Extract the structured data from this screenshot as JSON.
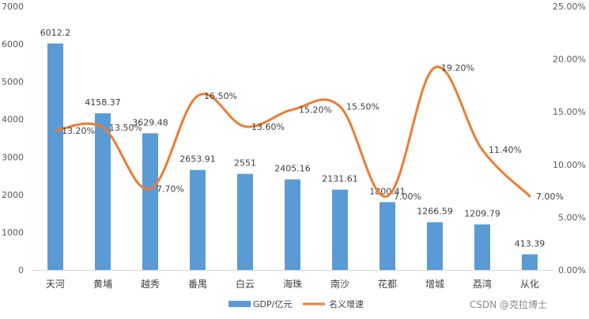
{
  "chart_data": {
    "type": "bar",
    "categories": [
      "天河",
      "黄埔",
      "越秀",
      "番禺",
      "白云",
      "海珠",
      "南沙",
      "花都",
      "增城",
      "荔湾",
      "从化"
    ],
    "series": [
      {
        "name": "GDP/亿元",
        "type": "bar",
        "axis": "left",
        "color": "#5B9BD5",
        "values": [
          6012.2,
          4158.37,
          3629.48,
          2653.91,
          2551,
          2405.16,
          2131.61,
          1800.41,
          1266.59,
          1209.79,
          413.39
        ],
        "labels": [
          "6012.2",
          "4158.37",
          "3629.48",
          "2653.91",
          "2551",
          "2405.16",
          "2131.61",
          "1800.41",
          "1266.59",
          "1209.79",
          "413.39"
        ]
      },
      {
        "name": "名义增速",
        "type": "line",
        "axis": "right",
        "color": "#ED7D31",
        "values": [
          0.132,
          0.135,
          0.077,
          0.165,
          0.136,
          0.152,
          0.155,
          0.07,
          0.192,
          0.114,
          0.07
        ],
        "labels": [
          "13.20%",
          "13.50%",
          "7.70%",
          "16.50%",
          "13.60%",
          "15.20%",
          "15.50%",
          "7.00%",
          "19.20%",
          "11.40%",
          "7.00%"
        ]
      }
    ],
    "y_left": {
      "min": 0,
      "max": 7000,
      "ticks": [
        "0",
        "1000",
        "2000",
        "3000",
        "4000",
        "5000",
        "6000",
        "7000"
      ]
    },
    "y_right": {
      "min": 0,
      "max": 0.25,
      "ticks": [
        "0.00%",
        "5.00%",
        "10.00%",
        "15.00%",
        "20.00%",
        "25.00%"
      ]
    },
    "grid": false,
    "legend": "bottom-center"
  },
  "watermark": "CSDN @克拉博士"
}
